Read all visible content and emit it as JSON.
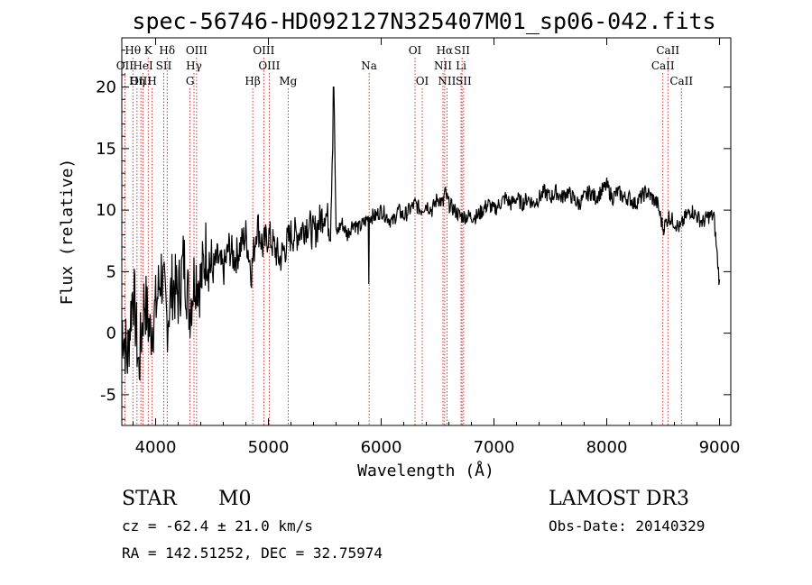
{
  "chart_data": {
    "type": "line",
    "title": "spec-56746-HD092127N325407M01_sp06-042.fits",
    "xlabel": "Wavelength (Å)",
    "ylabel": "Flux (relative)",
    "xlim": [
      3700,
      9100
    ],
    "ylim": [
      -7.5,
      24
    ],
    "xticks": [
      4000,
      5000,
      6000,
      7000,
      8000,
      9000
    ],
    "yticks": [
      -5,
      0,
      5,
      10,
      15,
      20
    ],
    "grid": false,
    "series": [
      {
        "name": "flux",
        "x": [
          3700,
          3750,
          3800,
          3850,
          3900,
          3950,
          4000,
          4050,
          4100,
          4150,
          4200,
          4250,
          4300,
          4350,
          4400,
          4450,
          4500,
          4550,
          4600,
          4650,
          4700,
          4750,
          4800,
          4850,
          4900,
          4950,
          5000,
          5050,
          5100,
          5150,
          5200,
          5250,
          5300,
          5350,
          5400,
          5450,
          5500,
          5550,
          5580,
          5600,
          5650,
          5700,
          5750,
          5800,
          5850,
          5900,
          5950,
          6000,
          6050,
          6100,
          6150,
          6200,
          6250,
          6300,
          6350,
          6400,
          6450,
          6500,
          6550,
          6563,
          6600,
          6650,
          6700,
          6750,
          6800,
          6850,
          6900,
          6950,
          7000,
          7050,
          7100,
          7150,
          7200,
          7250,
          7300,
          7350,
          7400,
          7450,
          7500,
          7550,
          7600,
          7650,
          7700,
          7750,
          7800,
          7850,
          7900,
          7950,
          8000,
          8050,
          8100,
          8150,
          8200,
          8250,
          8300,
          8350,
          8400,
          8450,
          8500,
          8550,
          8600,
          8650,
          8700,
          8750,
          8800,
          8850,
          8900,
          8950,
          9000
        ],
        "y": [
          1,
          -2,
          4,
          -3,
          3,
          0,
          2,
          5,
          1,
          4,
          3,
          6,
          2,
          5,
          4,
          7,
          5,
          6,
          5,
          7,
          6,
          7,
          8,
          5,
          9,
          7,
          8,
          7,
          6,
          7,
          8,
          8,
          8.5,
          9,
          8,
          9,
          10,
          8.5,
          20,
          8,
          9,
          8,
          9,
          8.5,
          9,
          9.5,
          9.5,
          10,
          9.5,
          9,
          10,
          9.5,
          10,
          10.5,
          10,
          10.5,
          10,
          11,
          10.5,
          11.5,
          10.5,
          10,
          9.5,
          9.5,
          9.5,
          9.5,
          10,
          10.5,
          10,
          10.5,
          11,
          10.5,
          11,
          10.5,
          11,
          10.5,
          11,
          11.5,
          11,
          11.5,
          11,
          11.5,
          11,
          10.5,
          11,
          11.5,
          11,
          11.5,
          12,
          11,
          11.5,
          11,
          11,
          10.5,
          11,
          11.5,
          11,
          10.5,
          8.5,
          9.5,
          9,
          8.5,
          9.5,
          10,
          9.5,
          9,
          9.5,
          9.5,
          4
        ]
      }
    ],
    "spectral_lines": [
      {
        "label": "Hθ",
        "wavelength": 3798,
        "row": 1
      },
      {
        "label": "K",
        "wavelength": 3934,
        "row": 1
      },
      {
        "label": "Hδ",
        "wavelength": 4102,
        "row": 1
      },
      {
        "label": "OIII",
        "wavelength": 4363,
        "row": 1
      },
      {
        "label": "OIII",
        "wavelength": 4959,
        "row": 1
      },
      {
        "label": "OI",
        "wavelength": 6300,
        "row": 1
      },
      {
        "label": "Hα",
        "wavelength": 6563,
        "row": 1
      },
      {
        "label": "SII",
        "wavelength": 6717,
        "row": 1
      },
      {
        "label": "CaII",
        "wavelength": 8542,
        "row": 1
      },
      {
        "label": "OII",
        "wavelength": 3727,
        "row": 2
      },
      {
        "label": "HeI",
        "wavelength": 3889,
        "row": 2
      },
      {
        "label": "SII",
        "wavelength": 4072,
        "row": 2
      },
      {
        "label": "Hγ",
        "wavelength": 4340,
        "row": 2
      },
      {
        "label": "OIII",
        "wavelength": 5007,
        "row": 2
      },
      {
        "label": "Na",
        "wavelength": 5893,
        "row": 2
      },
      {
        "label": "NII",
        "wavelength": 6548,
        "row": 2
      },
      {
        "label": "Li",
        "wavelength": 6708,
        "row": 2
      },
      {
        "label": "CaII",
        "wavelength": 8498,
        "row": 2
      },
      {
        "label": "OIII",
        "wavelength": 3869,
        "row": 3
      },
      {
        "label": "Hη",
        "wavelength": 3835,
        "row": 3
      },
      {
        "label": "H",
        "wavelength": 3969,
        "row": 3
      },
      {
        "label": "G",
        "wavelength": 4305,
        "row": 3
      },
      {
        "label": "Hβ",
        "wavelength": 4861,
        "row": 3
      },
      {
        "label": "Mg",
        "wavelength": 5175,
        "row": 3
      },
      {
        "label": "OI",
        "wavelength": 6364,
        "row": 3
      },
      {
        "label": "NII",
        "wavelength": 6583,
        "row": 3
      },
      {
        "label": "SII",
        "wavelength": 6731,
        "row": 3
      },
      {
        "label": "CaII",
        "wavelength": 8662,
        "row": 3
      }
    ]
  },
  "footer": {
    "object_class": "STAR",
    "subclass": "M0",
    "survey": "LAMOST DR3",
    "redshift": "cz = -62.4 ± 21.0 km/s",
    "obs_date": "Obs-Date: 20140329",
    "coords": "RA = 142.51252, DEC =  32.75974"
  }
}
